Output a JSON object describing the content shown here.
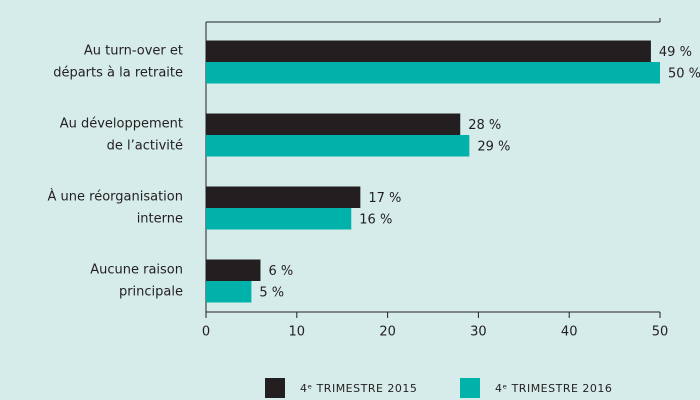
{
  "chart_data": {
    "type": "hbar",
    "categories": [
      [
        "Au turn-over et",
        "départs à la retraite"
      ],
      [
        "Au développement",
        "de l’activité"
      ],
      [
        "À une réorganisation",
        "interne"
      ],
      [
        "Aucune raison",
        "principale"
      ]
    ],
    "series": [
      {
        "name": "4ᵉ TRIMESTRE 2015",
        "color": "#231f20",
        "values": [
          49,
          28,
          17,
          6
        ],
        "value_labels": [
          "49 %",
          "28 %",
          "17 %",
          "6 %"
        ]
      },
      {
        "name": "4ᵉ TRIMESTRE 2016",
        "color": "#00b2a9",
        "values": [
          50,
          29,
          16,
          5
        ],
        "value_labels": [
          "50 %",
          "29 %",
          "16 %",
          "5 %"
        ]
      }
    ],
    "xlim": [
      0,
      50
    ],
    "xticks": [
      0,
      10,
      20,
      30,
      40,
      50
    ],
    "grid": false
  }
}
